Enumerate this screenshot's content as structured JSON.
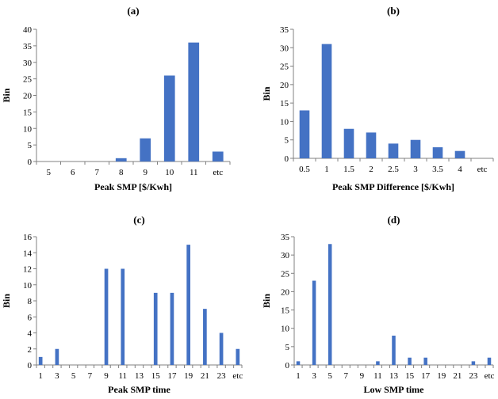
{
  "chart_data": [
    {
      "type": "bar",
      "title": "(a)",
      "xlabel": "Peak SMP [$/Kwh]",
      "ylabel": "Bin",
      "categories": [
        "5",
        "6",
        "7",
        "8",
        "9",
        "10",
        "11",
        "etc"
      ],
      "values": [
        0,
        0,
        0,
        1,
        7,
        26,
        36,
        3
      ],
      "ylim": [
        0,
        40
      ],
      "yticks": [
        0,
        5,
        10,
        15,
        20,
        25,
        30,
        35,
        40
      ],
      "color": "#4472C4"
    },
    {
      "type": "bar",
      "title": "(b)",
      "xlabel": "Peak SMP Difference [$/Kwh]",
      "ylabel": "Bin",
      "categories": [
        "0.5",
        "1",
        "1.5",
        "2",
        "2.5",
        "3",
        "3.5",
        "4",
        "etc"
      ],
      "values": [
        13,
        31,
        8,
        7,
        4,
        5,
        3,
        2,
        0
      ],
      "ylim": [
        0,
        35
      ],
      "yticks": [
        0,
        5,
        10,
        15,
        20,
        25,
        30,
        35
      ],
      "color": "#4472C4"
    },
    {
      "type": "bar",
      "title": "(c)",
      "xlabel": "Peak SMP time",
      "ylabel": "Bin",
      "categories": [
        "1",
        "2",
        "3",
        "4",
        "5",
        "6",
        "7",
        "8",
        "9",
        "10",
        "11",
        "12",
        "13",
        "14",
        "15",
        "16",
        "17",
        "18",
        "19",
        "20",
        "21",
        "22",
        "23",
        "24",
        "etc"
      ],
      "tick_labels": [
        "1",
        "",
        "3",
        "",
        "5",
        "",
        "7",
        "",
        "9",
        "",
        "11",
        "",
        "13",
        "",
        "15",
        "",
        "17",
        "",
        "19",
        "",
        "21",
        "",
        "23",
        "",
        "etc"
      ],
      "values": [
        1,
        0,
        2,
        0,
        0,
        0,
        0,
        0,
        12,
        0,
        12,
        0,
        0,
        0,
        9,
        0,
        9,
        0,
        15,
        0,
        7,
        0,
        4,
        0,
        2
      ],
      "ylim": [
        0,
        16
      ],
      "yticks": [
        0,
        2,
        4,
        6,
        8,
        10,
        12,
        14,
        16
      ],
      "color": "#4472C4"
    },
    {
      "type": "bar",
      "title": "(d)",
      "xlabel": "Low SMP time",
      "ylabel": "Bin",
      "categories": [
        "1",
        "2",
        "3",
        "4",
        "5",
        "6",
        "7",
        "8",
        "9",
        "10",
        "11",
        "12",
        "13",
        "14",
        "15",
        "16",
        "17",
        "18",
        "19",
        "20",
        "21",
        "22",
        "23",
        "24",
        "etc"
      ],
      "tick_labels": [
        "1",
        "",
        "3",
        "",
        "5",
        "",
        "7",
        "",
        "9",
        "",
        "11",
        "",
        "13",
        "",
        "15",
        "",
        "17",
        "",
        "19",
        "",
        "21",
        "",
        "23",
        "",
        "etc"
      ],
      "values": [
        1,
        0,
        23,
        0,
        33,
        0,
        0,
        0,
        0,
        0,
        1,
        0,
        8,
        0,
        2,
        0,
        2,
        0,
        0,
        0,
        0,
        0,
        1,
        0,
        2
      ],
      "ylim": [
        0,
        35
      ],
      "yticks": [
        0,
        5,
        10,
        15,
        20,
        25,
        30,
        35
      ],
      "color": "#4472C4"
    }
  ]
}
